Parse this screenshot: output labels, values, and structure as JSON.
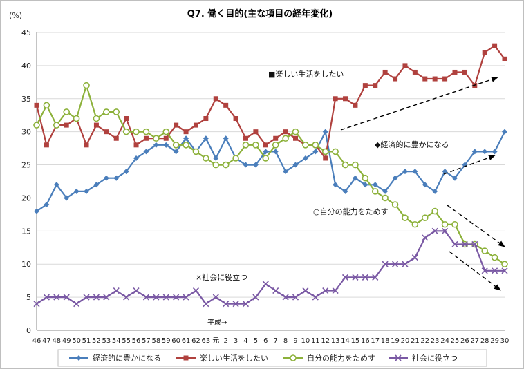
{
  "chart_data": {
    "type": "line",
    "title": "Q7. 働く目的(主な項目の経年変化)",
    "ylabel": "(%)",
    "ylim": [
      0,
      45
    ],
    "yticks": [
      0,
      5,
      10,
      15,
      20,
      25,
      30,
      35,
      40,
      45
    ],
    "grid": true,
    "legend_position": "bottom",
    "categories": [
      "46",
      "47",
      "48",
      "49",
      "50",
      "51",
      "52",
      "53",
      "54",
      "55",
      "56",
      "57",
      "58",
      "59",
      "60",
      "61",
      "62",
      "63",
      "元",
      "2",
      "3",
      "4",
      "5",
      "6",
      "7",
      "8",
      "9",
      "10",
      "11",
      "12",
      "13",
      "14",
      "15",
      "16",
      "17",
      "18",
      "19",
      "20",
      "21",
      "22",
      "23",
      "24",
      "25",
      "26",
      "27",
      "28",
      "29",
      "30"
    ],
    "series": [
      {
        "name": "経済的に豊かになる",
        "color": "#4a7ebb",
        "marker": "diamond",
        "values": [
          18,
          19,
          22,
          20,
          21,
          21,
          22,
          23,
          23,
          24,
          26,
          27,
          28,
          28,
          27,
          29,
          27,
          29,
          26,
          29,
          26,
          25,
          25,
          27,
          27,
          24,
          25,
          26,
          27,
          30,
          22,
          21,
          23,
          22,
          22,
          21,
          23,
          24,
          24,
          22,
          21,
          24,
          23,
          25,
          27,
          27,
          27,
          30
        ]
      },
      {
        "name": "楽しい生活をしたい",
        "color": "#b0413e",
        "marker": "square",
        "values": [
          34,
          28,
          31,
          31,
          32,
          28,
          31,
          30,
          29,
          32,
          28,
          29,
          29,
          29,
          31,
          30,
          31,
          32,
          35,
          34,
          32,
          29,
          30,
          28,
          29,
          30,
          29,
          28,
          28,
          26,
          35,
          35,
          34,
          37,
          37,
          39,
          38,
          40,
          39,
          38,
          38,
          38,
          39,
          39,
          37,
          42,
          43,
          41
        ]
      },
      {
        "name": "自分の能力をためす",
        "color": "#8cb13a",
        "marker": "circle",
        "values": [
          31,
          34,
          31,
          33,
          32,
          37,
          32,
          33,
          33,
          30,
          30,
          30,
          29,
          30,
          28,
          28,
          27,
          26,
          25,
          25,
          26,
          28,
          28,
          26,
          28,
          29,
          30,
          28,
          28,
          27,
          27,
          25,
          25,
          23,
          21,
          20,
          19,
          17,
          16,
          17,
          18,
          16,
          16,
          13,
          13,
          12,
          11,
          10
        ]
      },
      {
        "name": "社会に役立つ",
        "color": "#7a59a4",
        "marker": "x",
        "values": [
          4,
          5,
          5,
          5,
          4,
          5,
          5,
          5,
          6,
          5,
          6,
          5,
          5,
          5,
          5,
          5,
          6,
          4,
          5,
          4,
          4,
          4,
          5,
          7,
          6,
          5,
          5,
          6,
          5,
          6,
          6,
          8,
          8,
          8,
          8,
          10,
          10,
          10,
          11,
          14,
          15,
          15,
          13,
          13,
          13,
          9,
          9,
          9
        ]
      }
    ],
    "annotations": {
      "fun": "■楽しい生活をしたい",
      "rich": "◆経済的に豊かになる",
      "ability": "○自分の能力をためす",
      "society": "×社会に役立つ",
      "heisei": "平成→"
    }
  }
}
